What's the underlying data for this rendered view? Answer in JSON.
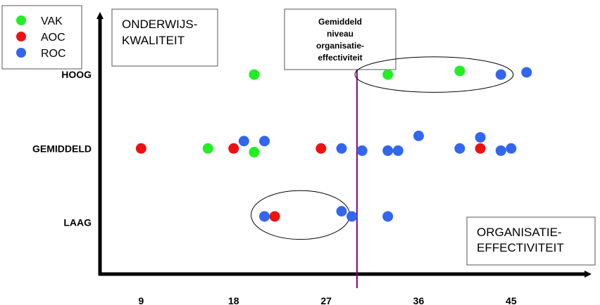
{
  "chart_data": {
    "type": "scatter",
    "title_lines": [
      "ONDERWIJS-",
      "KWALITEIT"
    ],
    "xlabel_lines": [
      "ORGANISATIE-",
      "EFFECTIVITEIT"
    ],
    "x_ticks": [
      "9",
      "18",
      "27",
      "36",
      "45"
    ],
    "y_categories": [
      "LAAG",
      "GEMIDDELD",
      "HOOG"
    ],
    "reference_line": {
      "x": 30,
      "label_lines": [
        "Gemiddeld",
        "niveau",
        "organisatie-",
        "effectiviteit"
      ]
    },
    "legend_position": "top-left",
    "xlim": [
      5,
      52
    ],
    "ylim": [
      0.3,
      3.8
    ],
    "series": [
      {
        "name": "VAK",
        "color": "#22ee22",
        "points": [
          {
            "x": 20,
            "y": 3
          },
          {
            "x": 33,
            "y": 3
          },
          {
            "x": 40,
            "y": 3.05
          },
          {
            "x": 15.5,
            "y": 2
          },
          {
            "x": 20,
            "y": 1.95
          }
        ]
      },
      {
        "name": "AOC",
        "color": "#ee1111",
        "points": [
          {
            "x": 9,
            "y": 2
          },
          {
            "x": 18,
            "y": 2
          },
          {
            "x": 26.5,
            "y": 2
          },
          {
            "x": 42,
            "y": 2
          },
          {
            "x": 22,
            "y": 1.08
          }
        ]
      },
      {
        "name": "ROC",
        "color": "#3366ee",
        "points": [
          {
            "x": 44,
            "y": 3
          },
          {
            "x": 46.5,
            "y": 3.03
          },
          {
            "x": 19,
            "y": 2.1
          },
          {
            "x": 21,
            "y": 2.1
          },
          {
            "x": 28.5,
            "y": 2
          },
          {
            "x": 30.5,
            "y": 1.97
          },
          {
            "x": 33,
            "y": 1.97
          },
          {
            "x": 34,
            "y": 1.97
          },
          {
            "x": 36,
            "y": 2.17
          },
          {
            "x": 40,
            "y": 2
          },
          {
            "x": 42,
            "y": 2.15
          },
          {
            "x": 44,
            "y": 1.97
          },
          {
            "x": 45,
            "y": 2
          },
          {
            "x": 21,
            "y": 1.08
          },
          {
            "x": 28.5,
            "y": 1.15
          },
          {
            "x": 29.5,
            "y": 1.08
          },
          {
            "x": 33,
            "y": 1.08
          }
        ]
      }
    ],
    "groupings": [
      {
        "cx": 37.5,
        "cy": 3,
        "rx": 7.7,
        "ry": 0.24
      },
      {
        "cx": 24.5,
        "cy": 1.1,
        "rx": 4.8,
        "ry": 0.33
      }
    ]
  }
}
